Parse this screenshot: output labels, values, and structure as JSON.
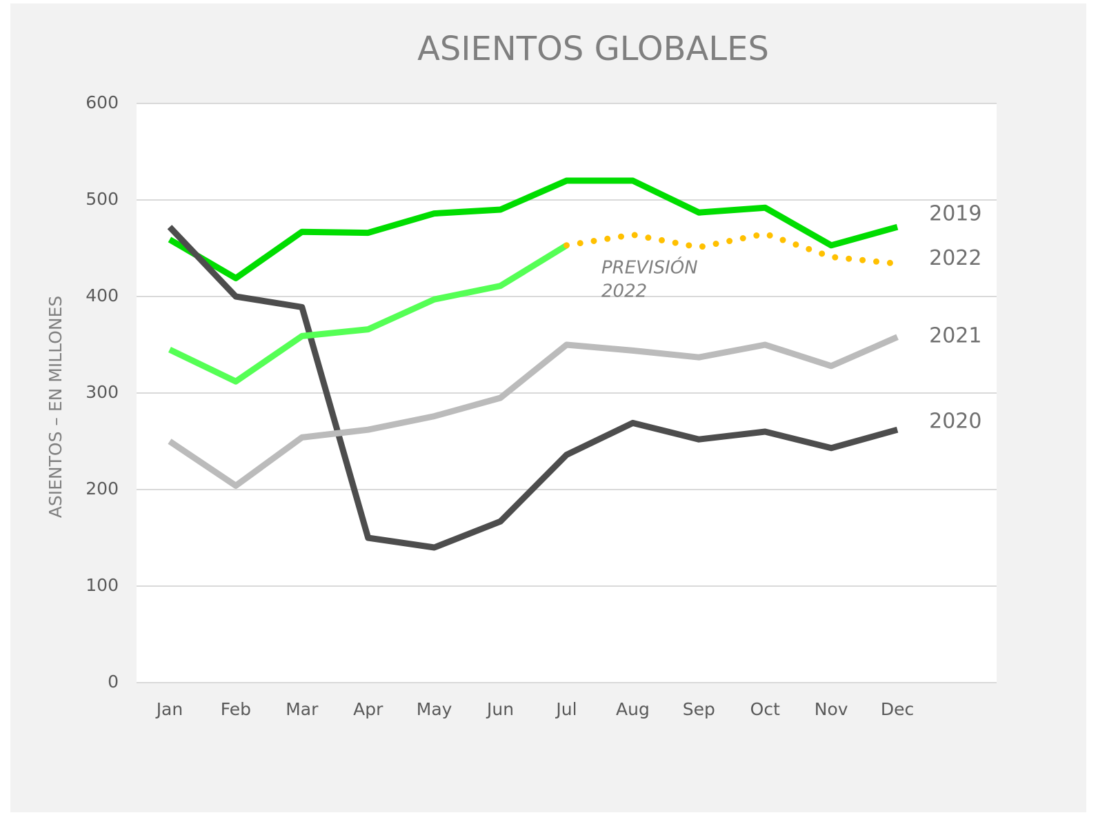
{
  "chart_data": {
    "type": "line",
    "title": "ASIENTOS GLOBALES",
    "y_label": "ASIENTOS – EN MILLONES",
    "categories": [
      "Jan",
      "Feb",
      "Mar",
      "Apr",
      "May",
      "Jun",
      "Jul",
      "Aug",
      "Sep",
      "Oct",
      "Nov",
      "Dec"
    ],
    "series": [
      {
        "name": "2019",
        "color": "#00dd00",
        "values": [
          459,
          419,
          467,
          466,
          486,
          490,
          520,
          520,
          487,
          492,
          453,
          472
        ]
      },
      {
        "name": "2020",
        "color": "#4d4d4d",
        "values": [
          472,
          400,
          389,
          150,
          140,
          167,
          236,
          269,
          252,
          260,
          243,
          262
        ]
      },
      {
        "name": "2021",
        "color": "#bbbbbb",
        "values": [
          250,
          204,
          254,
          262,
          276,
          295,
          350,
          344,
          337,
          350,
          328,
          358
        ]
      },
      {
        "color": "#55ff55",
        "values": [
          345,
          312,
          359,
          366,
          397,
          411,
          453,
          null,
          null,
          null,
          null,
          null
        ]
      },
      {
        "name": "2022",
        "color": "#ffc000",
        "dotted": true,
        "values": [
          null,
          null,
          null,
          null,
          null,
          null,
          453,
          464,
          451,
          465,
          441,
          434
        ]
      }
    ],
    "annotation": [
      "PREVISIÓN",
      "2022"
    ],
    "ylim": [
      0,
      600
    ],
    "yticks": [
      0,
      100,
      200,
      300,
      400,
      500,
      600
    ],
    "grid": true
  }
}
